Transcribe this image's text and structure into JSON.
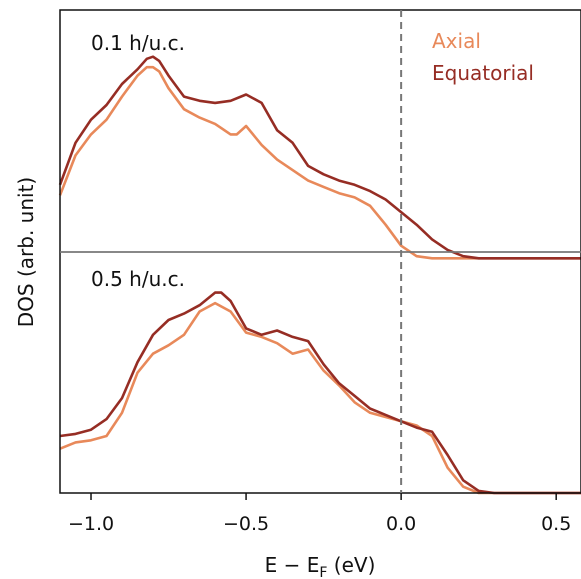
{
  "chart_data": {
    "type": "line",
    "xlabel": "E − E",
    "xlabel_sub": "F",
    "xlabel_unit": " (eV)",
    "ylabel": "DOS (arb. unit)",
    "xlim": [
      -1.1,
      0.58
    ],
    "xticks": [
      "−1.0",
      "−0.5",
      "0.0",
      "0.5"
    ],
    "xtick_values": [
      -1.0,
      -0.5,
      0.0,
      0.5
    ],
    "fermi_line_x": 0.0,
    "grid": false,
    "legend_position": "top-right",
    "legend": [
      {
        "name": "Axial",
        "color": "#E8895A"
      },
      {
        "name": "Equatorial",
        "color": "#962D24"
      }
    ],
    "ylim": [
      0,
      1
    ],
    "panels": [
      {
        "label": "0.1 h/u.c.",
        "series": [
          {
            "name": "Axial",
            "color": "#E8895A",
            "x": [
              -1.1,
              -1.05,
              -1.0,
              -0.95,
              -0.9,
              -0.85,
              -0.82,
              -0.8,
              -0.78,
              -0.75,
              -0.7,
              -0.65,
              -0.6,
              -0.55,
              -0.53,
              -0.5,
              -0.45,
              -0.4,
              -0.35,
              -0.3,
              -0.25,
              -0.2,
              -0.15,
              -0.1,
              -0.05,
              0.0,
              0.05,
              0.1,
              0.15,
              0.2,
              0.25,
              0.3,
              0.4,
              0.5,
              0.58
            ],
            "y": [
              0.27,
              0.46,
              0.56,
              0.63,
              0.74,
              0.84,
              0.88,
              0.88,
              0.86,
              0.78,
              0.68,
              0.64,
              0.61,
              0.56,
              0.56,
              0.6,
              0.51,
              0.44,
              0.39,
              0.34,
              0.31,
              0.28,
              0.26,
              0.22,
              0.13,
              0.03,
              -0.02,
              -0.03,
              -0.03,
              -0.03,
              -0.03,
              -0.03,
              -0.03,
              -0.03,
              -0.03
            ]
          },
          {
            "name": "Equatorial",
            "color": "#962D24",
            "x": [
              -1.1,
              -1.05,
              -1.0,
              -0.95,
              -0.9,
              -0.85,
              -0.82,
              -0.8,
              -0.78,
              -0.75,
              -0.7,
              -0.65,
              -0.6,
              -0.55,
              -0.5,
              -0.45,
              -0.4,
              -0.35,
              -0.3,
              -0.25,
              -0.2,
              -0.15,
              -0.1,
              -0.05,
              0.0,
              0.05,
              0.1,
              0.15,
              0.2,
              0.25,
              0.3,
              0.4,
              0.5,
              0.58
            ],
            "y": [
              0.32,
              0.52,
              0.63,
              0.7,
              0.8,
              0.87,
              0.92,
              0.93,
              0.91,
              0.84,
              0.74,
              0.72,
              0.71,
              0.72,
              0.75,
              0.71,
              0.58,
              0.52,
              0.41,
              0.37,
              0.34,
              0.32,
              0.29,
              0.25,
              0.19,
              0.13,
              0.06,
              0.01,
              -0.02,
              -0.03,
              -0.03,
              -0.03,
              -0.03,
              -0.03
            ]
          }
        ]
      },
      {
        "label": "0.5 h/u.c.",
        "series": [
          {
            "name": "Axial",
            "color": "#E8895A",
            "x": [
              -1.1,
              -1.05,
              -1.0,
              -0.95,
              -0.9,
              -0.85,
              -0.8,
              -0.75,
              -0.7,
              -0.65,
              -0.6,
              -0.55,
              -0.5,
              -0.45,
              -0.4,
              -0.35,
              -0.3,
              -0.25,
              -0.2,
              -0.15,
              -0.1,
              -0.05,
              0.0,
              0.05,
              0.1,
              0.15,
              0.2,
              0.25,
              0.3,
              0.4,
              0.5,
              0.58
            ],
            "y": [
              0.21,
              0.24,
              0.25,
              0.27,
              0.38,
              0.57,
              0.66,
              0.7,
              0.75,
              0.86,
              0.9,
              0.86,
              0.76,
              0.74,
              0.71,
              0.66,
              0.68,
              0.58,
              0.51,
              0.43,
              0.38,
              0.36,
              0.34,
              0.32,
              0.27,
              0.12,
              0.03,
              0.0,
              0.0,
              0.0,
              0.0,
              0.0
            ]
          },
          {
            "name": "Equatorial",
            "color": "#962D24",
            "x": [
              -1.1,
              -1.05,
              -1.0,
              -0.95,
              -0.9,
              -0.85,
              -0.8,
              -0.75,
              -0.7,
              -0.65,
              -0.6,
              -0.58,
              -0.55,
              -0.5,
              -0.45,
              -0.4,
              -0.35,
              -0.3,
              -0.25,
              -0.2,
              -0.15,
              -0.1,
              -0.05,
              0.0,
              0.05,
              0.1,
              0.15,
              0.2,
              0.25,
              0.3,
              0.4,
              0.5,
              0.58
            ],
            "y": [
              0.27,
              0.28,
              0.3,
              0.35,
              0.45,
              0.62,
              0.75,
              0.82,
              0.85,
              0.89,
              0.95,
              0.95,
              0.91,
              0.78,
              0.75,
              0.77,
              0.74,
              0.72,
              0.61,
              0.52,
              0.46,
              0.4,
              0.37,
              0.34,
              0.31,
              0.29,
              0.18,
              0.06,
              0.01,
              0.0,
              0.0,
              0.0,
              0.0
            ]
          }
        ]
      }
    ]
  }
}
